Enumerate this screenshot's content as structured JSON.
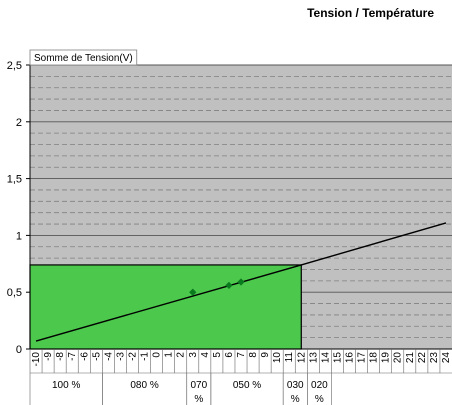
{
  "header": {
    "title": "Tension / Température"
  },
  "chart_data": {
    "type": "line",
    "title": "Tension / Température",
    "series_label": "Somme de Tension(V)",
    "x": [
      -10,
      -9,
      -8,
      -7,
      -6,
      -5,
      -4,
      -3,
      -2,
      -1,
      0,
      1,
      2,
      3,
      4,
      5,
      6,
      7,
      8,
      9,
      10,
      11,
      12,
      13,
      14,
      15,
      16,
      17,
      18,
      19,
      20,
      21,
      22,
      23,
      24
    ],
    "xlim": [
      -10.5,
      24.5
    ],
    "ylim": [
      0,
      2.5
    ],
    "yticks": [
      "0",
      "0,5",
      "1",
      "1,5",
      "2",
      "2,5"
    ],
    "y_ticks_values": [
      0,
      0.5,
      1,
      1.5,
      2,
      2.5
    ],
    "grid_minor_step": 0.1,
    "line": {
      "x": [
        -10,
        12,
        24
      ],
      "y": [
        0.07,
        0.74,
        1.11
      ]
    },
    "markers": {
      "x": [
        3,
        6,
        7
      ],
      "y": [
        0.5,
        0.56,
        0.59
      ]
    },
    "highlight": {
      "x0": -10.5,
      "x1": 12,
      "y0": 0,
      "y1": 0.74
    },
    "groups": [
      {
        "label": "100 %",
        "from": -10.5,
        "to": -4.5
      },
      {
        "label": "080 %",
        "from": -4.5,
        "to": 2.5
      },
      {
        "label": "070\n%",
        "from": 2.5,
        "to": 4.5
      },
      {
        "label": "050 %",
        "from": 4.5,
        "to": 10.5
      },
      {
        "label": "030\n%",
        "from": 10.5,
        "to": 12.5
      },
      {
        "label": "020\n%",
        "from": 12.5,
        "to": 14.5
      }
    ],
    "colors": {
      "plot_bg": "#c0c0c0",
      "highlight_fill": "#4cc84c",
      "highlight_stroke": "#000000",
      "line": "#000000",
      "line_inside": "#0a5c0a",
      "marker": "#0a7a1f",
      "grid": "#808080"
    }
  }
}
